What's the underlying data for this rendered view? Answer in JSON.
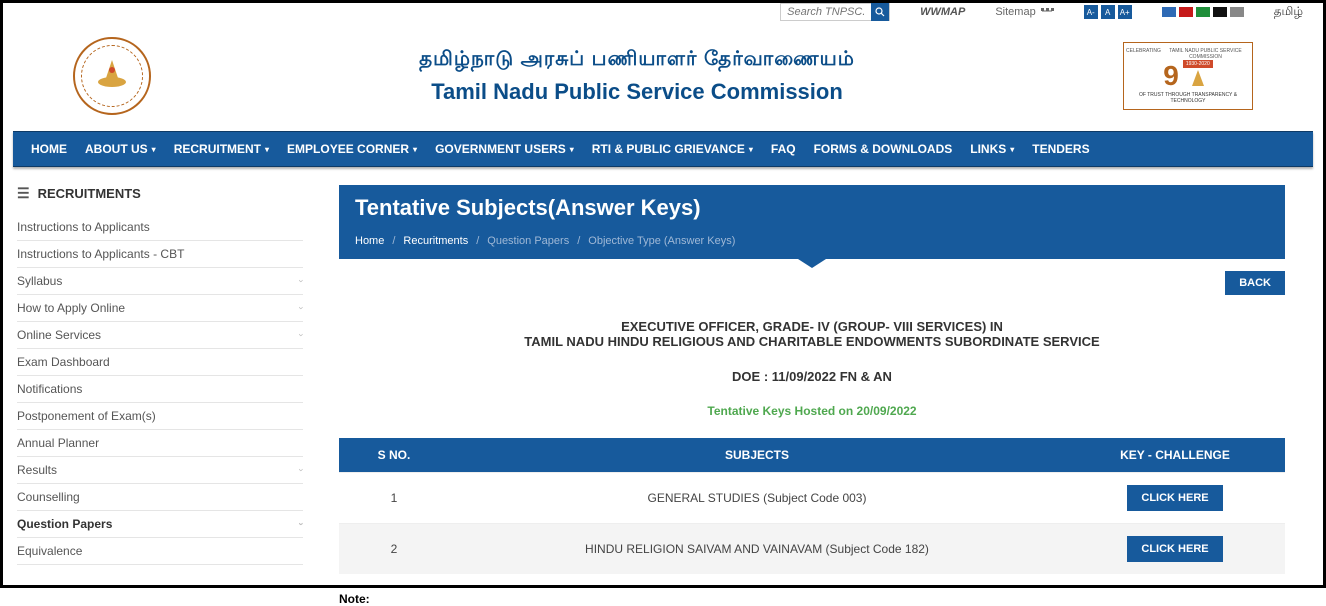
{
  "topbar": {
    "search_placeholder": "Search TNPSC...",
    "wwmap": "WWMAP",
    "sitemap": "Sitemap",
    "textsize_labels": [
      "A-",
      "A",
      "A+"
    ],
    "colors": [
      "#2e6ab5",
      "#c61a1a",
      "#1f8f3a",
      "#111",
      "#888"
    ],
    "lang": "தமிழ்"
  },
  "header": {
    "tamil_title": "தமிழ்நாடு அரசுப் பணியாளர் தேர்வாணையம்",
    "eng_title": "Tamil Nadu Public Service Commission",
    "right_top_l": "CELEBRATING",
    "right_top_r": "TAMIL NADU PUBLIC SERVICE COMMISSION",
    "right_year": "1930-2020",
    "right_bottom": "OF TRUST THROUGH TRANSPARENCY & TECHNOLOGY"
  },
  "nav": [
    {
      "label": "HOME",
      "dd": false
    },
    {
      "label": "ABOUT US",
      "dd": true
    },
    {
      "label": "RECRUITMENT",
      "dd": true,
      "active": true
    },
    {
      "label": "EMPLOYEE CORNER",
      "dd": true
    },
    {
      "label": "GOVERNMENT USERS",
      "dd": true
    },
    {
      "label": "RTI & PUBLIC GRIEVANCE",
      "dd": true
    },
    {
      "label": "FAQ",
      "dd": false
    },
    {
      "label": "FORMS & DOWNLOADS",
      "dd": false
    },
    {
      "label": "LINKS",
      "dd": true
    },
    {
      "label": "TENDERS",
      "dd": false
    }
  ],
  "sidebar": {
    "heading": "RECRUITMENTS",
    "items": [
      {
        "label": "Instructions to Applicants",
        "expand": false
      },
      {
        "label": "Instructions to Applicants - CBT",
        "expand": false
      },
      {
        "label": "Syllabus",
        "expand": true
      },
      {
        "label": "How to Apply Online",
        "expand": true
      },
      {
        "label": "Online Services",
        "expand": true
      },
      {
        "label": "Exam Dashboard",
        "expand": false
      },
      {
        "label": "Notifications",
        "expand": false
      },
      {
        "label": "Postponement of Exam(s)",
        "expand": false
      },
      {
        "label": "Annual Planner",
        "expand": false
      },
      {
        "label": "Results",
        "expand": true
      },
      {
        "label": "Counselling",
        "expand": false
      },
      {
        "label": "Question Papers",
        "expand": true,
        "active": true
      },
      {
        "label": "Equivalence",
        "expand": false
      }
    ]
  },
  "page": {
    "title": "Tentative Subjects(Answer Keys)",
    "crumbs": [
      "Home",
      "Recuritments",
      "Question Papers",
      "Objective Type (Answer Keys)"
    ],
    "back_label": "BACK",
    "exec_line1": "EXECUTIVE OFFICER, GRADE- IV (GROUP- VIII SERVICES) IN",
    "exec_line2": "TAMIL NADU HINDU RELIGIOUS AND CHARITABLE ENDOWMENTS SUBORDINATE SERVICE",
    "doe": "DOE : 11/09/2022 FN & AN",
    "tentative": "Tentative Keys Hosted on 20/09/2022",
    "cols": {
      "sno": "S NO.",
      "subj": "SUBJECTS",
      "key": "KEY - CHALLENGE"
    },
    "rows": [
      {
        "sno": "1",
        "subj": "GENERAL STUDIES (Subject Code 003)",
        "btn": "CLICK HERE"
      },
      {
        "sno": "2",
        "subj": "HINDU RELIGION SAIVAM AND VAINAVAM (Subject Code 182)",
        "btn": "CLICK HERE"
      }
    ],
    "note": "Note:"
  }
}
